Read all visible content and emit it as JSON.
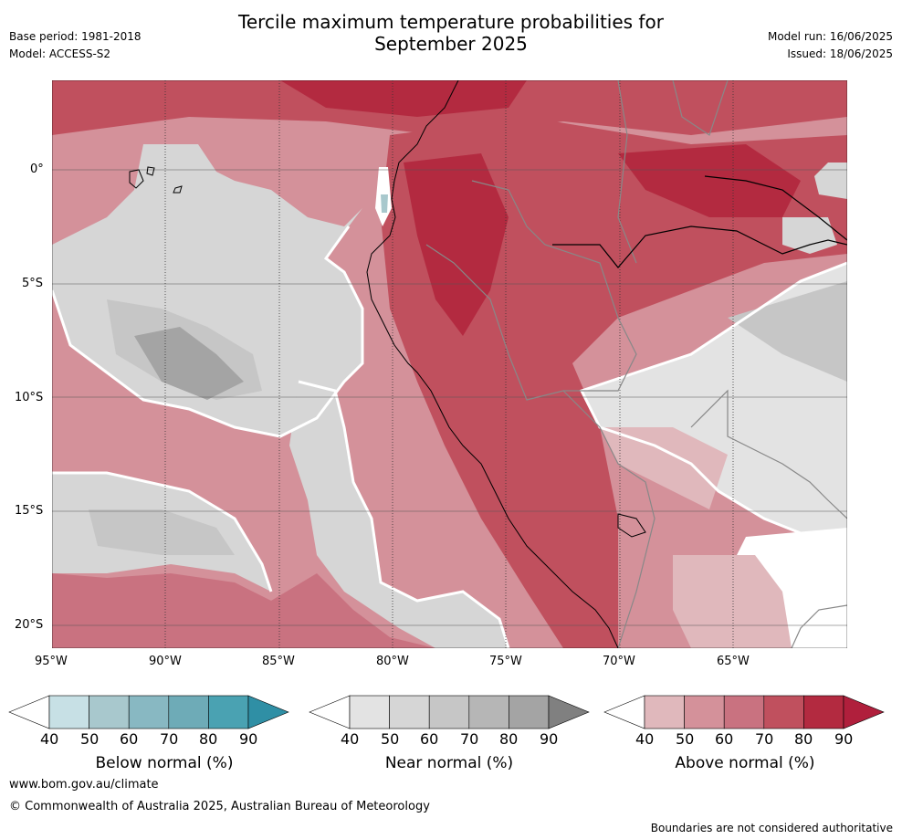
{
  "header": {
    "title_line1": "Tercile maximum temperature probabilities for",
    "title_line2": "September 2025",
    "base_period": "Base period: 1981-2018",
    "model": "Model: ACCESS-S2",
    "model_run": "Model run: 16/06/2025",
    "issued": "Issued: 18/06/2025"
  },
  "map": {
    "lat_ticks": [
      "0°",
      "5°S",
      "10°S",
      "15°S",
      "20°S"
    ],
    "lon_ticks": [
      "95°W",
      "90°W",
      "85°W",
      "80°W",
      "75°W",
      "70°W",
      "65°W"
    ],
    "colors": {
      "above": [
        "#e0b8bc",
        "#d4919a",
        "#c97280",
        "#c0505e",
        "#b32a40",
        "#b01f3c"
      ],
      "near": [
        "#e3e3e3",
        "#d6d6d6",
        "#c6c6c6",
        "#b6b6b6",
        "#a4a4a4",
        "#808080"
      ],
      "below": [
        "#c7e0e5",
        "#a8c8cd",
        "#88b8c2",
        "#6eabb7",
        "#4aa2b2",
        "#2f8fa5"
      ],
      "boundary": "#ffffff",
      "coast": "#000000",
      "borders": "#888888"
    }
  },
  "colorbars": [
    {
      "label": "Below normal (%)",
      "ticks": [
        "40",
        "50",
        "60",
        "70",
        "80",
        "90"
      ],
      "colors": [
        "#ffffff",
        "#c7e0e5",
        "#a8c8cd",
        "#88b8c2",
        "#6eabb7",
        "#4aa2b2",
        "#2f8fa5"
      ]
    },
    {
      "label": "Near normal (%)",
      "ticks": [
        "40",
        "50",
        "60",
        "70",
        "80",
        "90"
      ],
      "colors": [
        "#ffffff",
        "#e3e3e3",
        "#d6d6d6",
        "#c6c6c6",
        "#b6b6b6",
        "#a4a4a4",
        "#808080"
      ]
    },
    {
      "label": "Above normal (%)",
      "ticks": [
        "40",
        "50",
        "60",
        "70",
        "80",
        "90"
      ],
      "colors": [
        "#ffffff",
        "#e0b8bc",
        "#d4919a",
        "#c97280",
        "#c0505e",
        "#b32a40",
        "#b01f3c"
      ]
    }
  ],
  "footer": {
    "url": "www.bom.gov.au/climate",
    "copyright": "© Commonwealth of Australia 2025, Australian Bureau of Meteorology",
    "disclaimer": "Boundaries are not considered authoritative"
  }
}
